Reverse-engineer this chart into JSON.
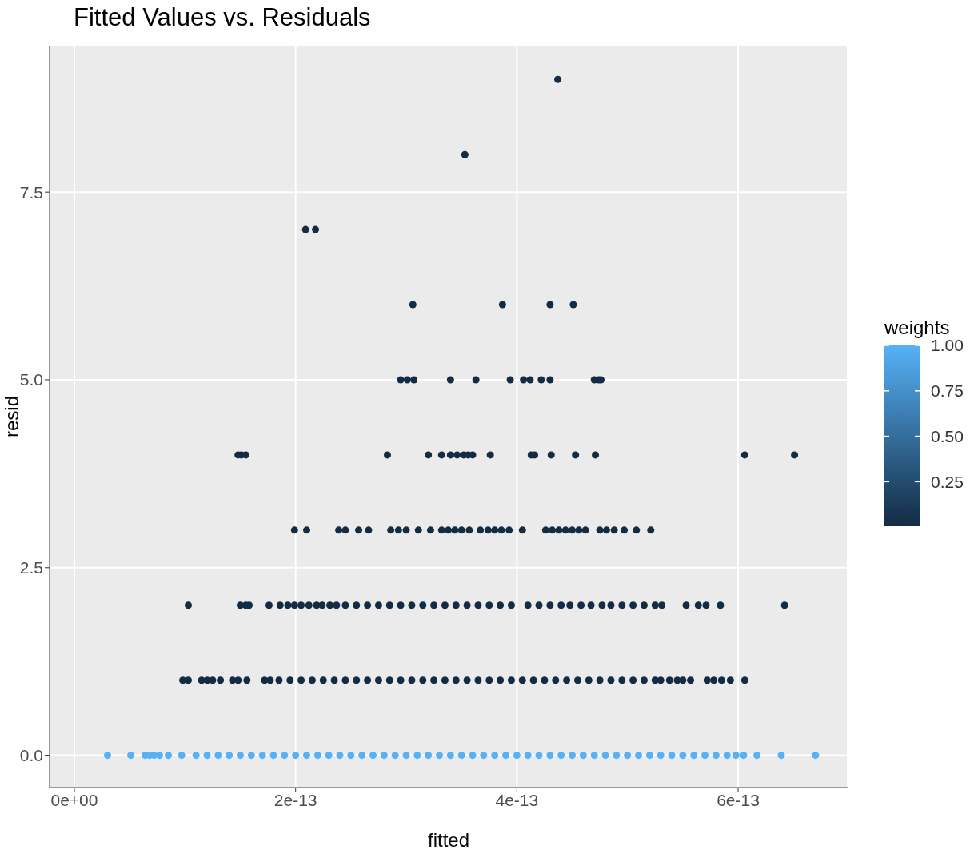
{
  "chart_data": {
    "type": "scatter",
    "title": "Fitted Values vs. Residuals",
    "xlabel": "fitted",
    "ylabel": "resid",
    "clabel": "weights",
    "grid": true,
    "xlim": [
      -2.24e-14,
      6.99e-13
    ],
    "ylim": [
      -0.43,
      9.45
    ],
    "xticks": [
      {
        "value": 0,
        "label": "0e+00"
      },
      {
        "value": 2e-13,
        "label": "2e-13"
      },
      {
        "value": 4e-13,
        "label": "4e-13"
      },
      {
        "value": 6e-13,
        "label": "6e-13"
      }
    ],
    "yticks": [
      {
        "value": 0,
        "label": "0.0"
      },
      {
        "value": 2.5,
        "label": "2.5"
      },
      {
        "value": 5,
        "label": "5.0"
      },
      7.5
    ],
    "clim": [
      0.005,
      1
    ],
    "cticks": [
      0.25,
      {
        "value": 0.5,
        "label": "0.50"
      },
      0.75,
      {
        "value": 1,
        "label": "1.00"
      }
    ],
    "series": [
      {
        "x": [
          3e-14,
          5.1e-14,
          6.4e-14,
          6.8e-14,
          7.2e-14,
          7.7e-14,
          8.5e-14,
          9.7e-14,
          1.1e-13,
          1.2e-13,
          1.3e-13,
          1.4e-13,
          1.5e-13,
          1.6e-13,
          1.7e-13,
          1.8e-13,
          1.9e-13,
          2e-13,
          2.1e-13,
          2.2e-13,
          2.3e-13,
          2.4e-13,
          2.5e-13,
          2.6e-13,
          2.7e-13,
          2.8e-13,
          2.9e-13,
          3e-13,
          3.1e-13,
          3.2e-13,
          3.3e-13,
          3.4e-13,
          3.5e-13,
          3.6e-13,
          3.7e-13,
          3.8e-13,
          3.9e-13,
          4e-13,
          4.1e-13,
          4.2e-13,
          4.3e-13,
          4.4e-13,
          4.5e-13,
          4.6e-13,
          4.7e-13,
          4.8e-13,
          4.9e-13,
          5e-13,
          5.1e-13,
          5.2e-13,
          5.3e-13,
          5.4e-13,
          5.5e-13,
          5.6e-13,
          5.7e-13,
          5.8e-13,
          5.9e-13,
          5.98e-13,
          6.05e-13,
          6.17e-13,
          6.39e-13,
          6.7e-13
        ],
        "values": [
          0,
          0,
          0,
          0,
          0,
          0,
          0,
          0,
          0,
          0,
          0,
          0,
          0,
          0,
          0,
          0,
          0,
          0,
          0,
          0,
          0,
          0,
          0,
          0,
          0,
          0,
          0,
          0,
          0,
          0,
          0,
          0,
          0,
          0,
          0,
          0,
          0,
          0,
          0,
          0,
          0,
          0,
          0,
          0,
          0,
          0,
          0,
          0,
          0,
          0,
          0,
          0,
          0,
          0,
          0,
          0,
          0,
          0,
          0,
          0,
          0,
          0
        ],
        "cvalues": [
          1,
          1,
          1,
          1,
          1,
          1,
          1,
          1,
          1,
          1,
          1,
          1,
          1,
          1,
          1,
          1,
          1,
          1,
          1,
          1,
          1,
          1,
          1,
          1,
          1,
          1,
          1,
          1,
          1,
          1,
          1,
          1,
          1,
          1,
          1,
          1,
          1,
          1,
          1,
          1,
          1,
          1,
          1,
          1,
          1,
          1,
          1,
          1,
          1,
          1,
          1,
          1,
          1,
          1,
          1,
          1,
          1,
          1,
          1,
          1,
          1,
          1
        ]
      },
      {
        "x": [
          9.8e-14,
          1.03e-13,
          1.15e-13,
          1.2e-13,
          1.25e-13,
          1.32e-13,
          1.43e-13,
          1.48e-13,
          1.56e-13,
          1.72e-13,
          1.77e-13,
          1.85e-13,
          1.95e-13,
          2.05e-13,
          2.15e-13,
          2.25e-13,
          2.35e-13,
          2.45e-13,
          2.55e-13,
          2.65e-13,
          2.75e-13,
          2.85e-13,
          2.95e-13,
          3.05e-13,
          3.15e-13,
          3.25e-13,
          3.35e-13,
          3.45e-13,
          3.55e-13,
          3.65e-13,
          3.75e-13,
          3.85e-13,
          3.95e-13,
          4.05e-13,
          4.15e-13,
          4.25e-13,
          4.35e-13,
          4.45e-13,
          4.55e-13,
          4.65e-13,
          4.75e-13,
          4.85e-13,
          4.95e-13,
          5.05e-13,
          5.15e-13,
          5.25e-13,
          5.3e-13,
          5.38e-13,
          5.45e-13,
          5.5e-13,
          5.57e-13,
          5.72e-13,
          5.78e-13,
          5.85e-13,
          5.93e-13,
          6.06e-13
        ],
        "values": [
          1,
          1,
          1,
          1,
          1,
          1,
          1,
          1,
          1,
          1,
          1,
          1,
          1,
          1,
          1,
          1,
          1,
          1,
          1,
          1,
          1,
          1,
          1,
          1,
          1,
          1,
          1,
          1,
          1,
          1,
          1,
          1,
          1,
          1,
          1,
          1,
          1,
          1,
          1,
          1,
          1,
          1,
          1,
          1,
          1,
          1,
          1,
          1,
          1,
          1,
          1,
          1,
          1,
          1,
          1,
          1
        ],
        "cvalues": [
          0.005,
          0.005,
          0.005,
          0.005,
          0.005,
          0.005,
          0.005,
          0.005,
          0.005,
          0.005,
          0.005,
          0.005,
          0.005,
          0.005,
          0.005,
          0.005,
          0.005,
          0.005,
          0.005,
          0.005,
          0.005,
          0.005,
          0.005,
          0.005,
          0.005,
          0.005,
          0.005,
          0.005,
          0.005,
          0.005,
          0.005,
          0.005,
          0.005,
          0.005,
          0.005,
          0.005,
          0.005,
          0.005,
          0.005,
          0.005,
          0.005,
          0.005,
          0.005,
          0.005,
          0.005,
          0.005,
          0.005,
          0.005,
          0.005,
          0.005,
          0.005,
          0.005,
          0.005,
          0.005,
          0.005,
          0.005
        ]
      },
      {
        "x": [
          1.03e-13,
          1.5e-13,
          1.55e-13,
          1.58e-13,
          1.76e-13,
          1.86e-13,
          1.93e-13,
          1.99e-13,
          2.05e-13,
          2.12e-13,
          2.19e-13,
          2.24e-13,
          2.31e-13,
          2.37e-13,
          2.45e-13,
          2.55e-13,
          2.65e-13,
          2.75e-13,
          2.85e-13,
          2.95e-13,
          3.05e-13,
          3.15e-13,
          3.25e-13,
          3.35e-13,
          3.45e-13,
          3.55e-13,
          3.65e-13,
          3.75e-13,
          3.85e-13,
          3.95e-13,
          4.1e-13,
          4.2e-13,
          4.3e-13,
          4.4e-13,
          4.48e-13,
          4.58e-13,
          4.67e-13,
          4.77e-13,
          4.85e-13,
          4.95e-13,
          5.05e-13,
          5.15e-13,
          5.25e-13,
          5.31e-13,
          5.53e-13,
          5.64e-13,
          5.71e-13,
          5.84e-13,
          6.42e-13
        ],
        "values": [
          2,
          2,
          2,
          2,
          2,
          2,
          2,
          2,
          2,
          2,
          2,
          2,
          2,
          2,
          2,
          2,
          2,
          2,
          2,
          2,
          2,
          2,
          2,
          2,
          2,
          2,
          2,
          2,
          2,
          2,
          2,
          2,
          2,
          2,
          2,
          2,
          2,
          2,
          2,
          2,
          2,
          2,
          2,
          2,
          2,
          2,
          2,
          2,
          2
        ],
        "cvalues": [
          0.005,
          0.005,
          0.005,
          0.005,
          0.005,
          0.005,
          0.005,
          0.005,
          0.005,
          0.005,
          0.005,
          0.005,
          0.005,
          0.005,
          0.005,
          0.005,
          0.005,
          0.005,
          0.005,
          0.005,
          0.005,
          0.005,
          0.005,
          0.005,
          0.005,
          0.005,
          0.005,
          0.005,
          0.005,
          0.005,
          0.005,
          0.005,
          0.005,
          0.005,
          0.005,
          0.005,
          0.005,
          0.005,
          0.005,
          0.005,
          0.005,
          0.005,
          0.005,
          0.005,
          0.005,
          0.005,
          0.005,
          0.005,
          0.005
        ]
      },
      {
        "x": [
          1.99e-13,
          2.1e-13,
          2.39e-13,
          2.45e-13,
          2.57e-13,
          2.66e-13,
          2.86e-13,
          2.93e-13,
          3e-13,
          3.11e-13,
          3.22e-13,
          3.32e-13,
          3.38e-13,
          3.44e-13,
          3.5e-13,
          3.57e-13,
          3.67e-13,
          3.74e-13,
          3.8e-13,
          3.86e-13,
          3.93e-13,
          4.05e-13,
          4.26e-13,
          4.32e-13,
          4.38e-13,
          4.44e-13,
          4.5e-13,
          4.56e-13,
          4.62e-13,
          4.75e-13,
          4.81e-13,
          4.88e-13,
          4.97e-13,
          5.08e-13,
          5.21e-13
        ],
        "values": [
          3,
          3,
          3,
          3,
          3,
          3,
          3,
          3,
          3,
          3,
          3,
          3,
          3,
          3,
          3,
          3,
          3,
          3,
          3,
          3,
          3,
          3,
          3,
          3,
          3,
          3,
          3,
          3,
          3,
          3,
          3,
          3,
          3,
          3,
          3
        ],
        "cvalues": [
          0.005,
          0.005,
          0.005,
          0.005,
          0.005,
          0.005,
          0.005,
          0.005,
          0.005,
          0.005,
          0.005,
          0.005,
          0.005,
          0.005,
          0.005,
          0.005,
          0.005,
          0.005,
          0.005,
          0.005,
          0.005,
          0.005,
          0.005,
          0.005,
          0.005,
          0.005,
          0.005,
          0.005,
          0.005,
          0.005,
          0.005,
          0.005,
          0.005,
          0.005,
          0.005
        ]
      },
      {
        "x": [
          1.48e-13,
          1.51e-13,
          1.55e-13,
          2.83e-13,
          3.2e-13,
          3.32e-13,
          3.4e-13,
          3.46e-13,
          3.52e-13,
          3.56e-13,
          3.6e-13,
          3.76e-13,
          4.13e-13,
          4.16e-13,
          4.31e-13,
          4.53e-13,
          4.71e-13,
          6.06e-13,
          6.51e-13
        ],
        "values": [
          4,
          4,
          4,
          4,
          4,
          4,
          4,
          4,
          4,
          4,
          4,
          4,
          4,
          4,
          4,
          4,
          4,
          4,
          4
        ],
        "cvalues": [
          0.005,
          0.005,
          0.005,
          0.005,
          0.005,
          0.005,
          0.005,
          0.005,
          0.005,
          0.005,
          0.005,
          0.005,
          0.005,
          0.005,
          0.005,
          0.005,
          0.005,
          0.005,
          0.005
        ]
      },
      {
        "x": [
          2.95e-13,
          3.01e-13,
          3.07e-13,
          3.4e-13,
          3.63e-13,
          3.94e-13,
          4.06e-13,
          4.12e-13,
          4.22e-13,
          4.3e-13,
          4.7e-13,
          4.74e-13,
          4.76e-13,
          3.06e-13,
          3.87e-13,
          4.3e-13,
          4.51e-13,
          2.09e-13,
          2.18e-13,
          3.53e-13,
          4.37e-13
        ],
        "values": [
          5,
          5,
          5,
          5,
          5,
          5,
          5,
          5,
          5,
          5,
          5,
          5,
          5,
          6,
          6,
          6,
          6,
          7,
          7,
          8,
          9
        ],
        "cvalues": [
          0.005,
          0.005,
          0.005,
          0.005,
          0.005,
          0.005,
          0.005,
          0.005,
          0.005,
          0.005,
          0.005,
          0.005,
          0.005,
          0.005,
          0.005,
          0.005,
          0.005,
          0.005,
          0.005,
          0.005,
          0.005
        ]
      }
    ]
  }
}
